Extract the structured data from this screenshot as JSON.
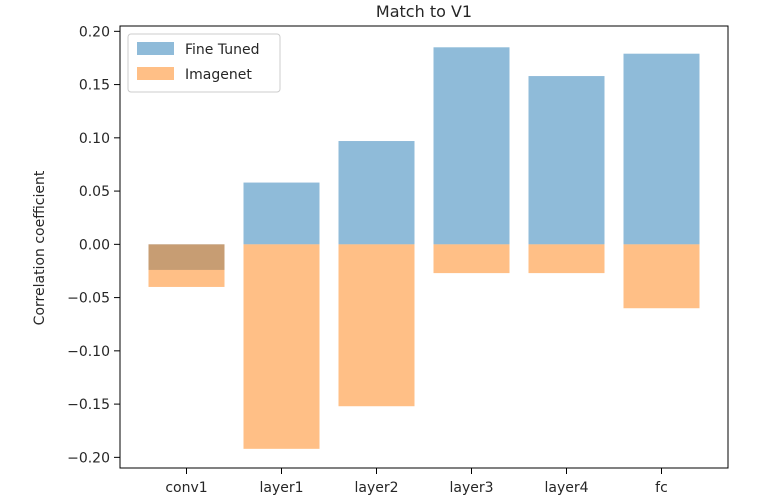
{
  "chart_data": {
    "type": "bar",
    "title": "Match to V1",
    "xlabel": "",
    "ylabel": "Correlation coefficient",
    "categories": [
      "conv1",
      "layer1",
      "layer2",
      "layer3",
      "layer4",
      "fc"
    ],
    "series": [
      {
        "name": "Fine Tuned",
        "values": [
          -0.024,
          0.058,
          0.097,
          0.185,
          0.158,
          0.179
        ],
        "color": "#1f77b4",
        "opacity": 0.5
      },
      {
        "name": "Imagenet",
        "values": [
          -0.04,
          -0.192,
          -0.152,
          -0.027,
          -0.027,
          -0.06
        ],
        "color": "#ff7f0e",
        "opacity": 0.5
      }
    ],
    "ylim": [
      -0.21,
      0.205
    ],
    "yticks": [
      0.2,
      0.15,
      0.1,
      0.05,
      0.0,
      -0.05,
      -0.1,
      -0.15,
      -0.2
    ],
    "ytick_labels": [
      "0.20",
      "0.15",
      "0.10",
      "0.05",
      "0.00",
      "−0.05",
      "−0.10",
      "−0.15",
      "−0.20"
    ],
    "grid": false,
    "legend_position": "top-left",
    "overlay": true
  }
}
